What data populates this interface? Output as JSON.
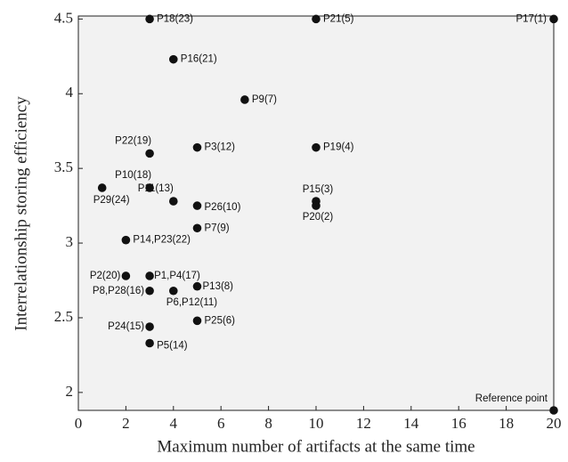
{
  "chart_data": {
    "type": "scatter",
    "xlabel": "Maximum number of artifacts at the same time",
    "ylabel": "Interrelationship storing efficiency",
    "xlim": [
      0,
      20
    ],
    "ylim": [
      1.88,
      4.52
    ],
    "xticks": [
      0,
      2,
      4,
      6,
      8,
      10,
      12,
      14,
      16,
      18,
      20
    ],
    "yticks": [
      2,
      2.5,
      3,
      3.5,
      4,
      4.5
    ],
    "color": "#111111",
    "x": [
      3,
      10,
      20,
      4,
      7,
      3,
      5,
      10,
      3,
      1,
      4,
      5,
      10,
      10,
      5,
      2,
      2,
      3,
      5,
      3,
      4,
      5,
      3,
      3,
      20
    ],
    "values": [
      4.5,
      4.5,
      4.5,
      4.23,
      3.96,
      3.6,
      3.64,
      3.64,
      3.37,
      3.37,
      3.28,
      3.25,
      3.28,
      3.25,
      3.1,
      3.02,
      2.78,
      2.78,
      2.71,
      2.68,
      2.68,
      2.48,
      2.44,
      2.33,
      1.88
    ],
    "labels": [
      "P18(23)",
      "P21(5)",
      "P17(1)",
      "P16(21)",
      "P9(7)",
      "P22(19)",
      "P3(12)",
      "P19(4)",
      "P10(18)",
      "P29(24)",
      "P11(13)",
      "P26(10)",
      "P15(3)",
      "P20(2)",
      "P7(9)",
      "P14,P23(22)",
      "P2(20)",
      "P1,P4(17)",
      "P13(8)",
      "P8,P28(16)",
      "P6,P12(11)",
      "P25(6)",
      "P24(15)",
      "P5(14)",
      "Reference point"
    ]
  }
}
